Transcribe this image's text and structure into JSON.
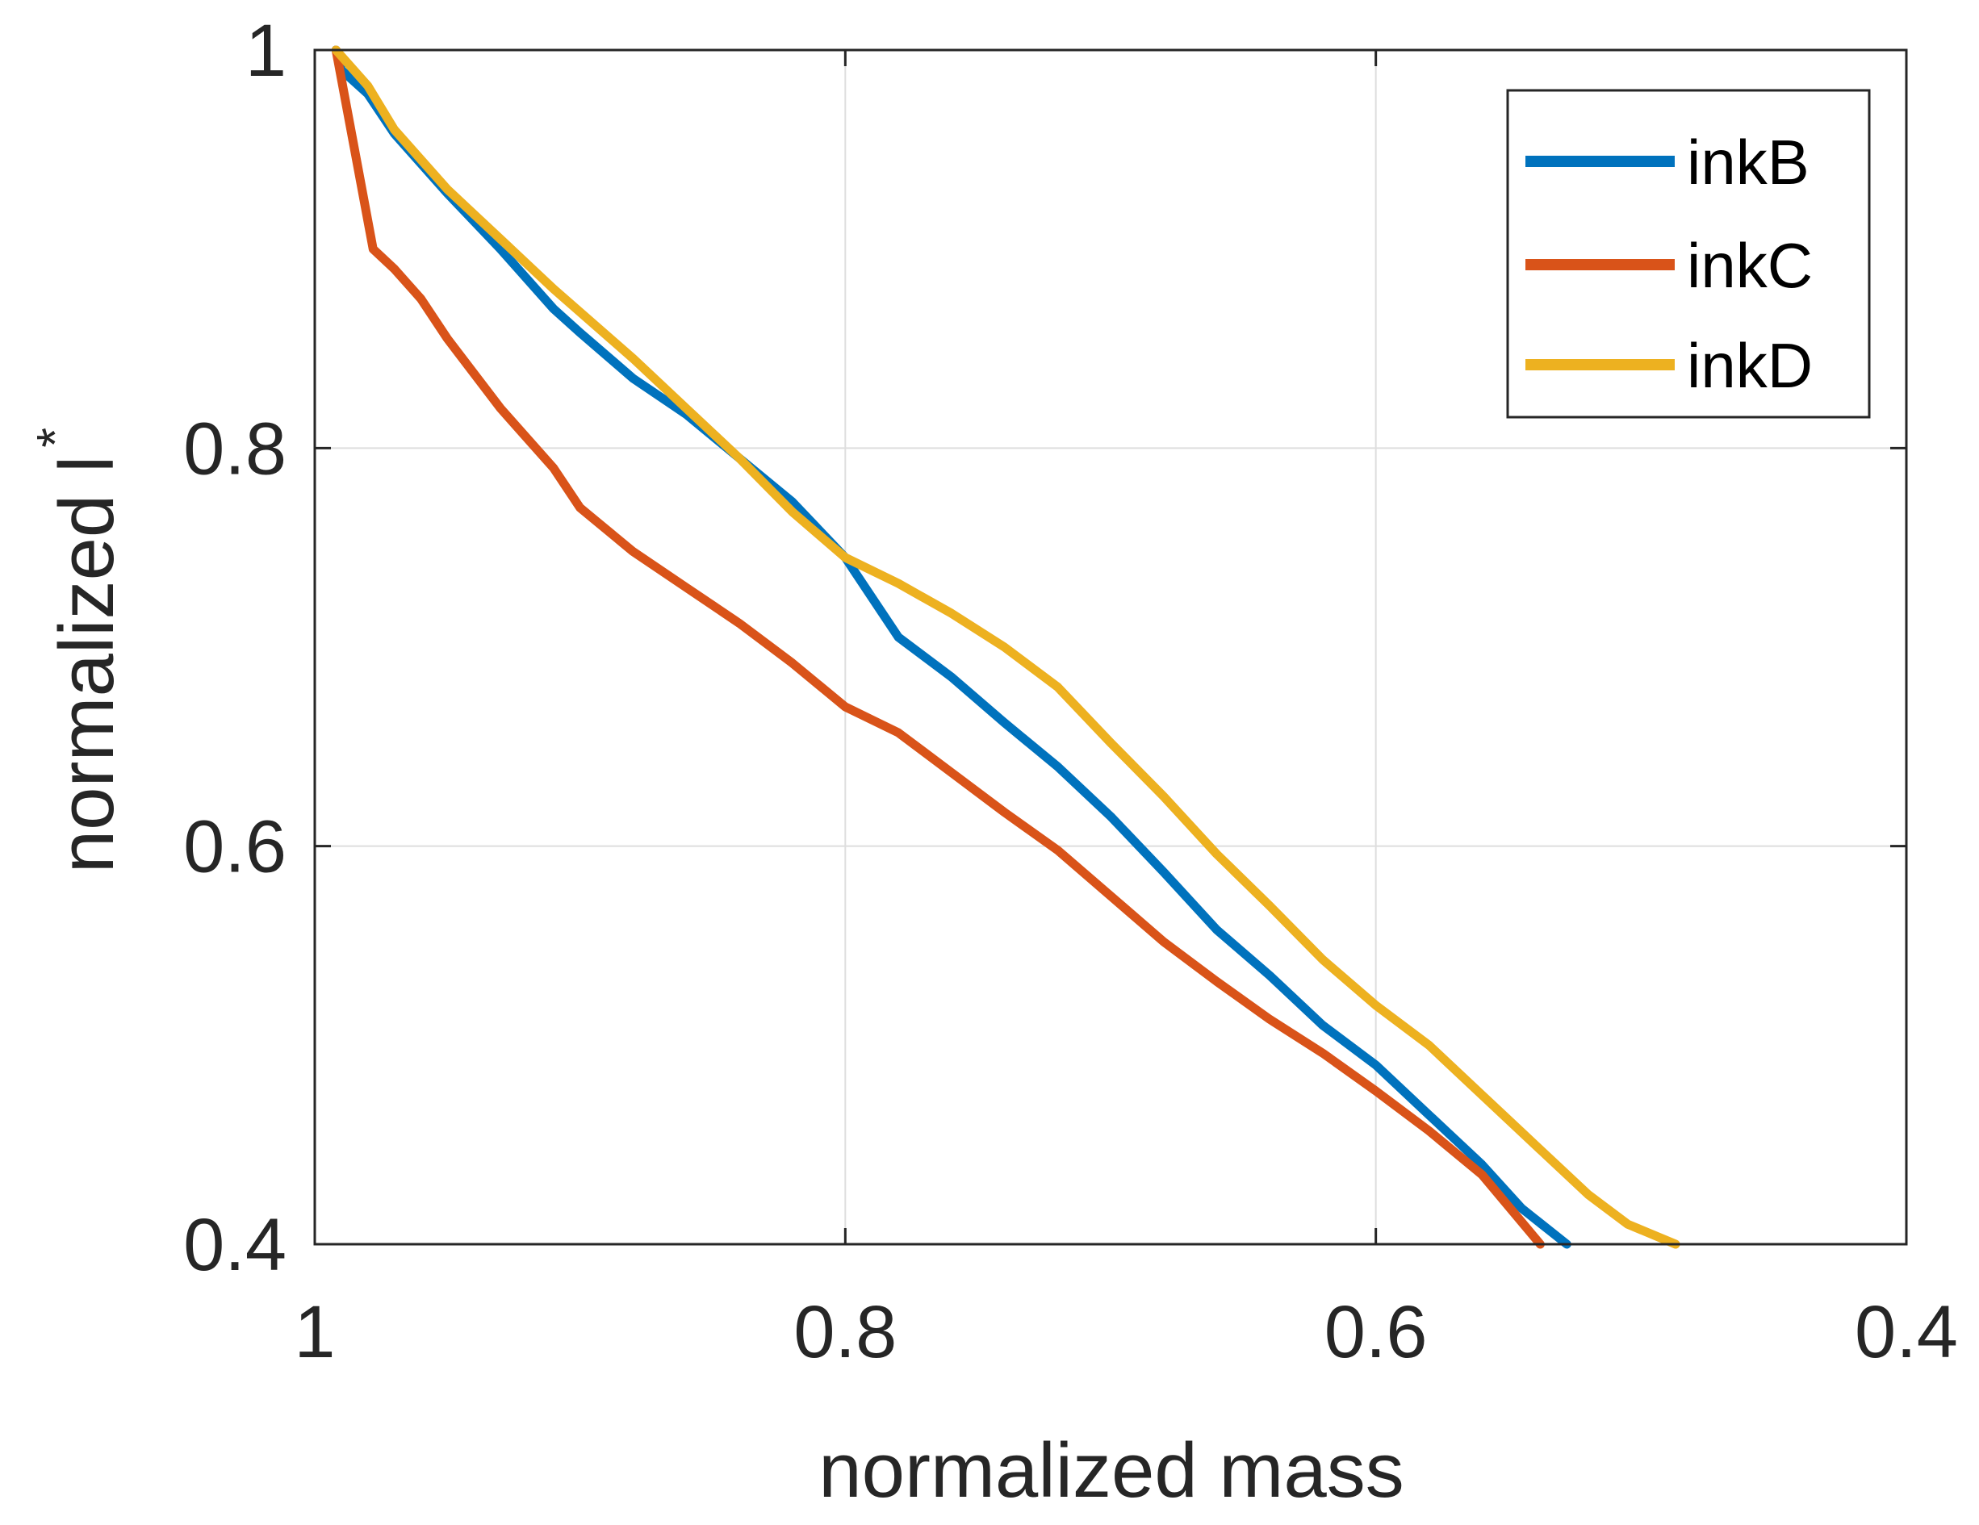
{
  "chart_data": {
    "type": "line",
    "title": "",
    "xlabel": "normalized mass",
    "ylabel": "normalized l",
    "ylabel_superscript": "*",
    "xlim": [
      1,
      0.4
    ],
    "ylim": [
      0.4,
      1
    ],
    "x_reversed": true,
    "grid": true,
    "legend_position": "top-right",
    "xticks": [
      1,
      0.8,
      0.6,
      0.4
    ],
    "xtick_labels": [
      "1",
      "0.8",
      "0.6",
      "0.4"
    ],
    "yticks": [
      0.4,
      0.6,
      0.8,
      1
    ],
    "ytick_labels": [
      "0.4",
      "0.6",
      "0.8",
      "1"
    ],
    "series": [
      {
        "name": "inkB",
        "color": "#0072BD",
        "x": [
          0.992,
          0.99,
          0.98,
          0.97,
          0.95,
          0.93,
          0.91,
          0.9,
          0.88,
          0.86,
          0.84,
          0.82,
          0.8,
          0.78,
          0.76,
          0.74,
          0.72,
          0.7,
          0.68,
          0.66,
          0.64,
          0.62,
          0.6,
          0.58,
          0.56,
          0.545,
          0.528
        ],
        "y": [
          1.0,
          0.99,
          0.978,
          0.958,
          0.928,
          0.9,
          0.87,
          0.858,
          0.835,
          0.817,
          0.795,
          0.773,
          0.745,
          0.705,
          0.685,
          0.662,
          0.64,
          0.615,
          0.587,
          0.558,
          0.535,
          0.51,
          0.49,
          0.465,
          0.44,
          0.418,
          0.4
        ]
      },
      {
        "name": "inkC",
        "color": "#D95319",
        "x": [
          0.992,
          0.985,
          0.978,
          0.97,
          0.96,
          0.95,
          0.93,
          0.91,
          0.9,
          0.88,
          0.86,
          0.84,
          0.82,
          0.8,
          0.78,
          0.76,
          0.74,
          0.72,
          0.7,
          0.68,
          0.66,
          0.64,
          0.62,
          0.6,
          0.58,
          0.56,
          0.538
        ],
        "y": [
          1.0,
          0.95,
          0.9,
          0.89,
          0.875,
          0.855,
          0.82,
          0.79,
          0.77,
          0.748,
          0.73,
          0.712,
          0.692,
          0.67,
          0.657,
          0.637,
          0.617,
          0.598,
          0.575,
          0.552,
          0.532,
          0.513,
          0.496,
          0.477,
          0.457,
          0.435,
          0.4
        ]
      },
      {
        "name": "inkD",
        "color": "#EDB120",
        "x": [
          0.992,
          0.98,
          0.97,
          0.95,
          0.93,
          0.91,
          0.88,
          0.86,
          0.84,
          0.82,
          0.8,
          0.78,
          0.76,
          0.74,
          0.72,
          0.7,
          0.68,
          0.66,
          0.64,
          0.62,
          0.6,
          0.58,
          0.56,
          0.54,
          0.52,
          0.505,
          0.487
        ],
        "y": [
          1.0,
          0.982,
          0.96,
          0.93,
          0.905,
          0.88,
          0.845,
          0.82,
          0.795,
          0.768,
          0.745,
          0.732,
          0.717,
          0.7,
          0.68,
          0.652,
          0.625,
          0.596,
          0.57,
          0.543,
          0.52,
          0.5,
          0.475,
          0.45,
          0.425,
          0.41,
          0.4
        ]
      }
    ]
  }
}
